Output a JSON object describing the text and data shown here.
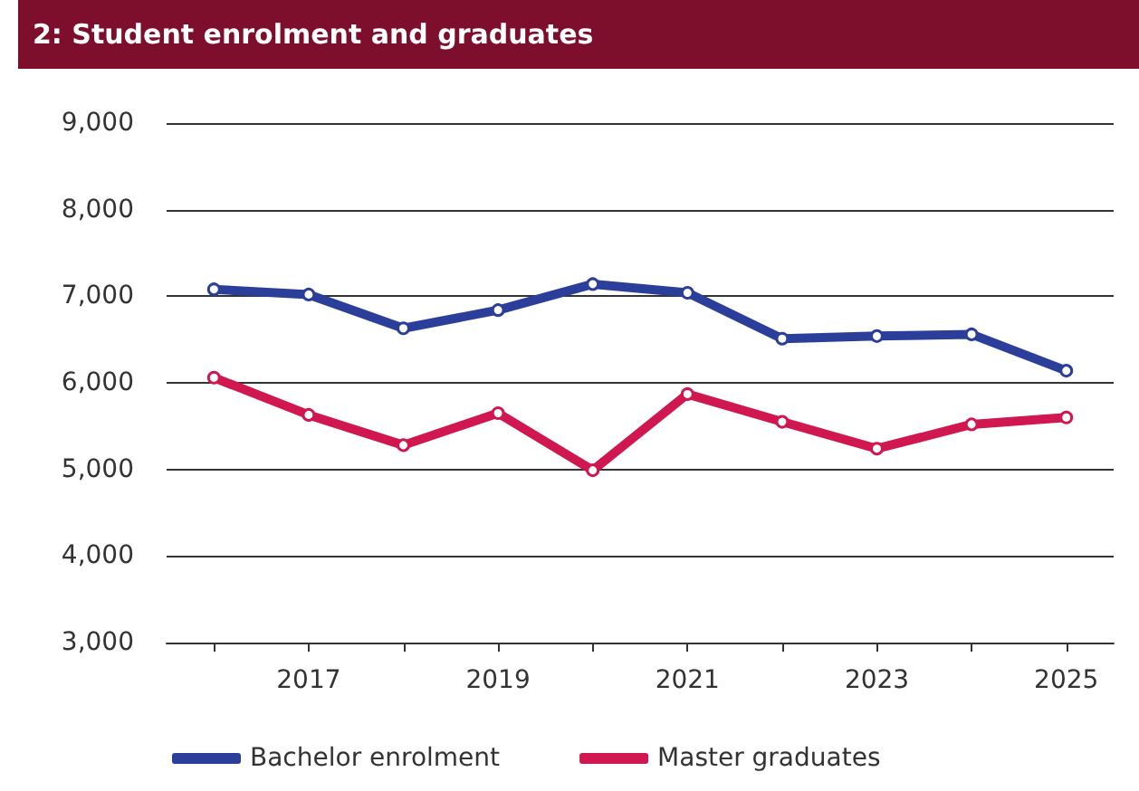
{
  "chart_data": {
    "type": "line",
    "title": "2: Student enrolment and graduates",
    "x": [
      2016,
      2017,
      2018,
      2019,
      2020,
      2021,
      2022,
      2023,
      2024,
      2025
    ],
    "series": [
      {
        "name": "Bachelor enrolment",
        "color": "#2b3f9a",
        "values": [
          7080,
          7020,
          6630,
          6840,
          7140,
          7040,
          6510,
          6540,
          6560,
          6140
        ]
      },
      {
        "name": "Master graduates",
        "color": "#d0174f",
        "values": [
          6060,
          5630,
          5280,
          5650,
          4990,
          5870,
          5550,
          5240,
          5520,
          5600
        ]
      }
    ],
    "xlim": [
      2015.5,
      2025.5
    ],
    "xticks": [
      {
        "value": 2016,
        "label": null
      },
      2017,
      {
        "value": 2018,
        "label": null
      },
      2019,
      {
        "value": 2020,
        "label": null
      },
      2021,
      {
        "value": 2022,
        "label": null
      },
      2023,
      {
        "value": 2024,
        "label": null
      },
      2025
    ],
    "ylim": [
      3000,
      9000
    ],
    "yticks": [
      {
        "value": 3000,
        "label": "3,000"
      },
      {
        "value": 4000,
        "label": "4,000"
      },
      {
        "value": 5000,
        "label": "5,000"
      },
      {
        "value": 6000,
        "label": "6,000"
      },
      {
        "value": 7000,
        "label": "7,000"
      },
      {
        "value": 8000,
        "label": "8,000"
      },
      {
        "value": 9000,
        "label": "9,000"
      }
    ],
    "grid": "y",
    "legend": "bottom left",
    "marker": "circle",
    "line_style": "solid"
  }
}
